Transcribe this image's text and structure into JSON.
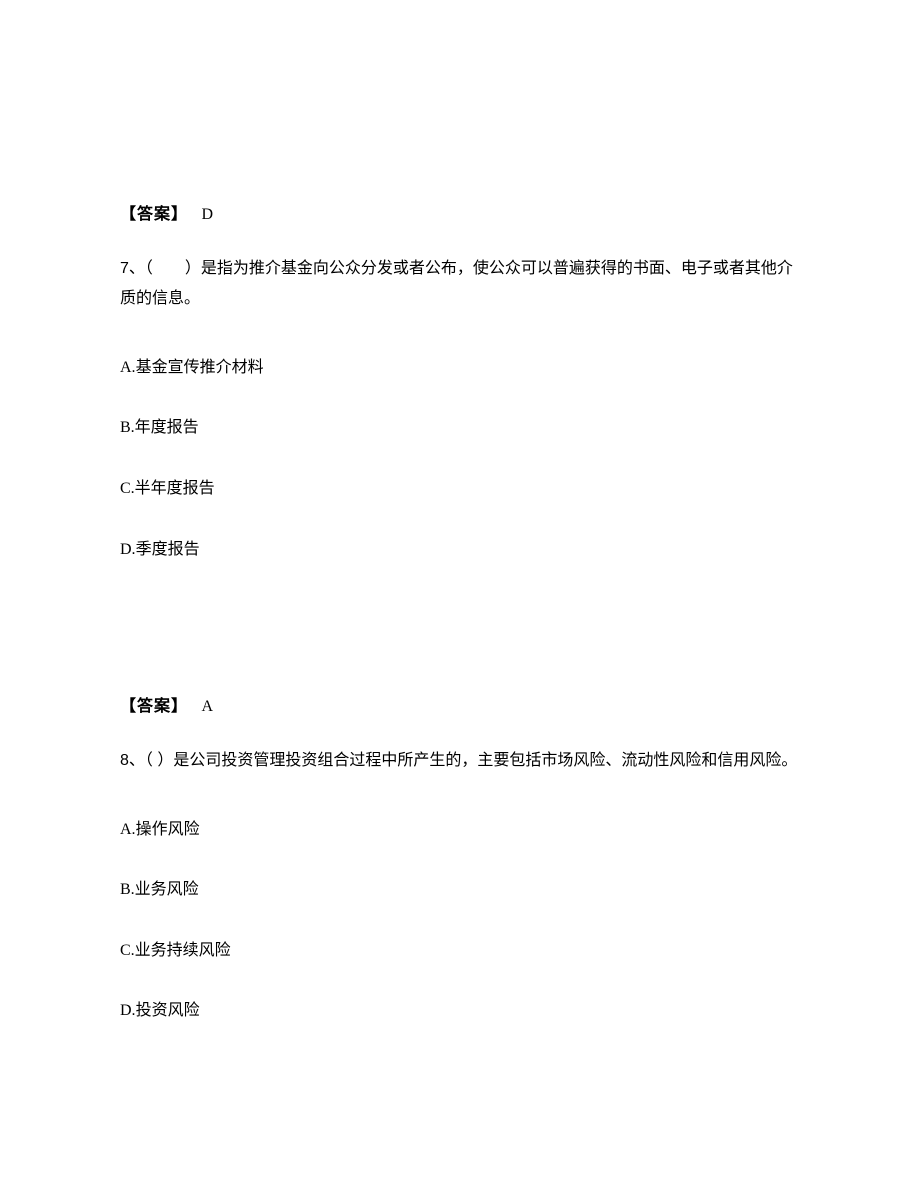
{
  "block7": {
    "answer": {
      "label": "【答案】",
      "value": "D"
    },
    "question": {
      "number": "7、",
      "text": "（　　）是指为推介基金向公众分发或者公布，使公众可以普遍获得的书面、电子或者其他介质的信息。"
    },
    "options": {
      "a": {
        "letter": "A.",
        "text": "基金宣传推介材料"
      },
      "b": {
        "letter": "B.",
        "text": "年度报告"
      },
      "c": {
        "letter": "C.",
        "text": "半年度报告"
      },
      "d": {
        "letter": "D.",
        "text": "季度报告"
      }
    }
  },
  "block8": {
    "answer": {
      "label": "【答案】",
      "value": "A"
    },
    "question": {
      "number": "8、",
      "text": "（ ）是公司投资管理投资组合过程中所产生的，主要包括市场风险、流动性风险和信用风险。"
    },
    "options": {
      "a": {
        "letter": "A.",
        "text": "操作风险"
      },
      "b": {
        "letter": "B.",
        "text": "业务风险"
      },
      "c": {
        "letter": "C.",
        "text": "业务持续风险"
      },
      "d": {
        "letter": "D.",
        "text": "投资风险"
      }
    }
  }
}
